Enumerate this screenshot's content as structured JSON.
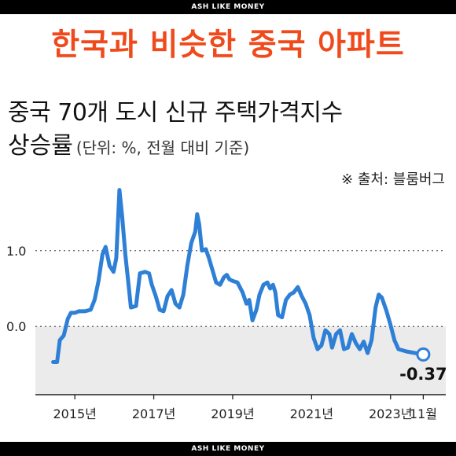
{
  "header_tag": "ASH LIKE MONEY",
  "footer_tag": "ASH LIKE MONEY",
  "headline": "한국과 비슷한 중국 아파트",
  "colors": {
    "headline": "#f04a1c",
    "line": "#2e7fd6",
    "negative_band": "#ebebeb"
  },
  "chart_data": {
    "type": "line",
    "title": "중국 70개 도시 신규 주택가격지수",
    "title_line2": "상승률",
    "unit_note": "(단위: %, 전월 대비 기준)",
    "source": "※ 출처: 블룸버그",
    "xlabel": "",
    "ylabel": "",
    "ylim": [
      -0.9,
      1.9
    ],
    "y_ticks": [
      {
        "value": 1.0,
        "label": "1.0"
      },
      {
        "value": 0.0,
        "label": "0.0"
      }
    ],
    "x_ticks": [
      {
        "value": 2015.0,
        "label": "2015년"
      },
      {
        "value": 2017.0,
        "label": "2017년"
      },
      {
        "value": 2019.0,
        "label": "2019년"
      },
      {
        "value": 2021.0,
        "label": "2021년"
      },
      {
        "value": 2023.0,
        "label": "2023년"
      },
      {
        "value": 2023.83,
        "label": "11월"
      }
    ],
    "xlim": [
      2014.0,
      2024.4
    ],
    "negative_band": true,
    "last_point_label": "-0.37",
    "series": [
      {
        "values": [
          [
            2014.45,
            -0.47
          ],
          [
            2014.55,
            -0.47
          ],
          [
            2014.62,
            -0.18
          ],
          [
            2014.72,
            -0.12
          ],
          [
            2014.82,
            0.1
          ],
          [
            2014.9,
            0.18
          ],
          [
            2015.0,
            0.18
          ],
          [
            2015.1,
            0.2
          ],
          [
            2015.25,
            0.2
          ],
          [
            2015.4,
            0.22
          ],
          [
            2015.5,
            0.35
          ],
          [
            2015.6,
            0.6
          ],
          [
            2015.7,
            0.95
          ],
          [
            2015.78,
            1.05
          ],
          [
            2015.88,
            0.8
          ],
          [
            2015.98,
            0.72
          ],
          [
            2016.05,
            0.9
          ],
          [
            2016.13,
            1.8
          ],
          [
            2016.2,
            1.45
          ],
          [
            2016.28,
            0.95
          ],
          [
            2016.35,
            0.6
          ],
          [
            2016.42,
            0.25
          ],
          [
            2016.55,
            0.27
          ],
          [
            2016.65,
            0.7
          ],
          [
            2016.78,
            0.72
          ],
          [
            2016.88,
            0.7
          ],
          [
            2016.95,
            0.55
          ],
          [
            2017.05,
            0.4
          ],
          [
            2017.15,
            0.22
          ],
          [
            2017.25,
            0.2
          ],
          [
            2017.35,
            0.4
          ],
          [
            2017.45,
            0.48
          ],
          [
            2017.55,
            0.3
          ],
          [
            2017.65,
            0.25
          ],
          [
            2017.75,
            0.42
          ],
          [
            2017.85,
            0.8
          ],
          [
            2017.95,
            1.1
          ],
          [
            2018.05,
            1.25
          ],
          [
            2018.1,
            1.48
          ],
          [
            2018.15,
            1.35
          ],
          [
            2018.22,
            1.0
          ],
          [
            2018.32,
            1.02
          ],
          [
            2018.4,
            0.9
          ],
          [
            2018.5,
            0.72
          ],
          [
            2018.58,
            0.58
          ],
          [
            2018.68,
            0.55
          ],
          [
            2018.78,
            0.65
          ],
          [
            2018.85,
            0.68
          ],
          [
            2018.92,
            0.62
          ],
          [
            2019.0,
            0.6
          ],
          [
            2019.12,
            0.58
          ],
          [
            2019.25,
            0.45
          ],
          [
            2019.35,
            0.3
          ],
          [
            2019.42,
            0.35
          ],
          [
            2019.5,
            0.08
          ],
          [
            2019.6,
            0.22
          ],
          [
            2019.68,
            0.42
          ],
          [
            2019.78,
            0.55
          ],
          [
            2019.88,
            0.58
          ],
          [
            2019.95,
            0.5
          ],
          [
            2020.02,
            0.55
          ],
          [
            2020.08,
            0.45
          ],
          [
            2020.15,
            0.15
          ],
          [
            2020.25,
            0.12
          ],
          [
            2020.35,
            0.35
          ],
          [
            2020.45,
            0.42
          ],
          [
            2020.55,
            0.45
          ],
          [
            2020.65,
            0.52
          ],
          [
            2020.75,
            0.4
          ],
          [
            2020.85,
            0.3
          ],
          [
            2020.95,
            0.15
          ],
          [
            2021.05,
            -0.15
          ],
          [
            2021.15,
            -0.3
          ],
          [
            2021.25,
            -0.25
          ],
          [
            2021.35,
            -0.05
          ],
          [
            2021.45,
            -0.1
          ],
          [
            2021.52,
            -0.28
          ],
          [
            2021.62,
            -0.1
          ],
          [
            2021.72,
            -0.05
          ],
          [
            2021.82,
            -0.3
          ],
          [
            2021.92,
            -0.28
          ],
          [
            2022.02,
            -0.1
          ],
          [
            2022.12,
            -0.22
          ],
          [
            2022.22,
            -0.3
          ],
          [
            2022.32,
            -0.2
          ],
          [
            2022.42,
            -0.35
          ],
          [
            2022.52,
            -0.18
          ],
          [
            2022.62,
            0.25
          ],
          [
            2022.7,
            0.42
          ],
          [
            2022.78,
            0.38
          ],
          [
            2022.9,
            0.2
          ],
          [
            2023.0,
            0.02
          ],
          [
            2023.1,
            -0.18
          ],
          [
            2023.2,
            -0.3
          ],
          [
            2023.4,
            -0.33
          ],
          [
            2023.83,
            -0.37
          ]
        ]
      }
    ]
  }
}
